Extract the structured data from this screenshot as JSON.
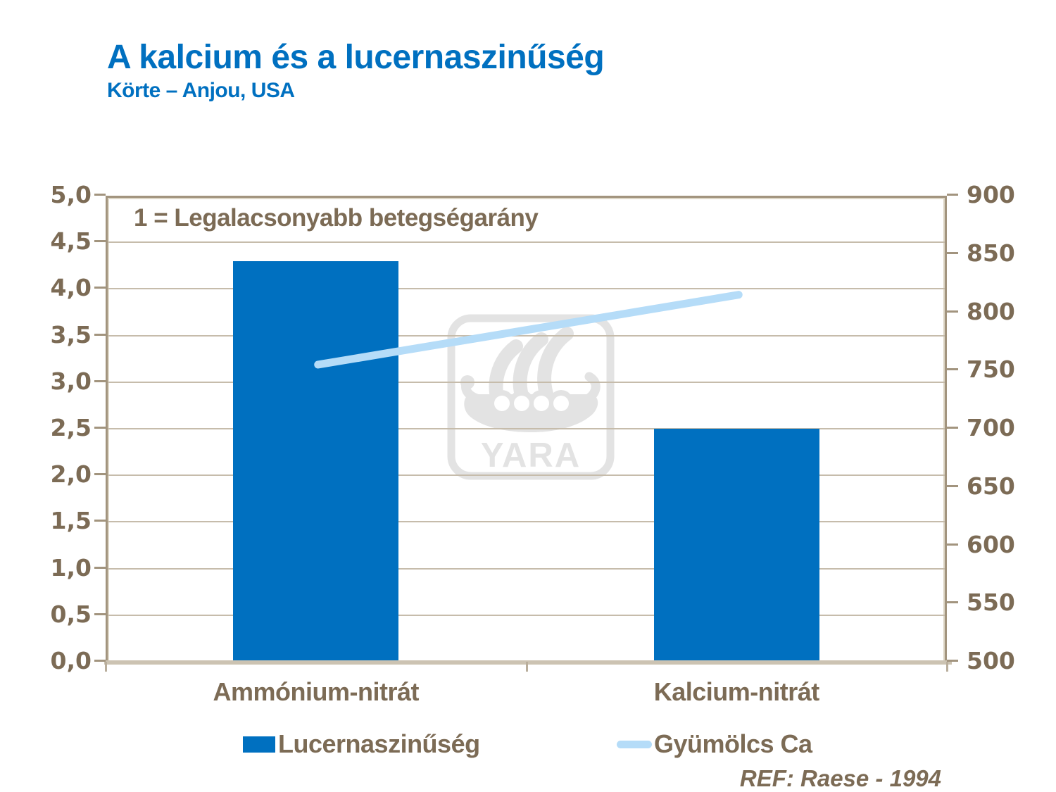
{
  "header": {
    "title": "A kalcium és a lucernaszinűség",
    "subtitle": "Körte – Anjou, USA"
  },
  "annotation": "1 = Legalacsonyabb betegségarány",
  "footnote": "REF: Raese - 1994",
  "watermark": "YARA",
  "chart_data": {
    "type": "bar",
    "categories": [
      "Ammónium-nitrát",
      "Kalcium-nitrát"
    ],
    "series": [
      {
        "name": "Lucernaszinűség",
        "type": "bar",
        "axis": "left",
        "values": [
          4.3,
          2.5
        ]
      },
      {
        "name": "Gyümölcs Ca",
        "type": "line",
        "axis": "right",
        "values": [
          755,
          815
        ]
      }
    ],
    "title": "A kalcium és a lucernaszinűség",
    "subtitle": "Körte – Anjou, USA",
    "left_axis": {
      "min": 0,
      "max": 5,
      "step": 0.5,
      "decimal": "comma"
    },
    "right_axis": {
      "min": 500,
      "max": 900,
      "step": 50
    },
    "grid": true,
    "legend_position": "bottom",
    "annotation": "1 = Legalacsonyabb betegségarány",
    "colors": {
      "bar": "#0070C0",
      "line": "#B5DCF8",
      "text": "#7C6B55",
      "title": "#0070C0",
      "frame": "#A2947E",
      "watermark": "#E3E3E3"
    }
  }
}
